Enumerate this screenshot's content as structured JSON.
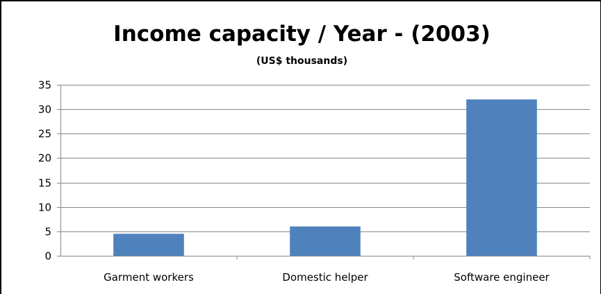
{
  "chart_data": {
    "type": "bar",
    "title": "Income capacity / Year - (2003)",
    "subtitle": "(US$ thousands)",
    "xlabel": "",
    "ylabel": "",
    "categories": [
      "Garment workers",
      "Domestic helper",
      "Software engineer"
    ],
    "values": [
      4.5,
      6,
      32
    ],
    "ylim": [
      0,
      35
    ],
    "yticks": [
      0,
      5,
      10,
      15,
      20,
      25,
      30,
      35
    ],
    "ytick_labels": [
      "0",
      "5",
      "10",
      "15",
      "20",
      "25",
      "30",
      "35"
    ],
    "grid": true,
    "legend": "none",
    "bar_color": "#4F81BD",
    "grid_color": "#868686"
  }
}
